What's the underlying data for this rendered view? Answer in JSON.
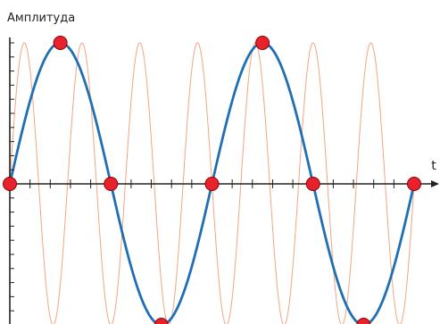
{
  "chart_data": {
    "type": "line",
    "ylabel": "Амплитуда",
    "xlabel": "t",
    "xlim": [
      0,
      2
    ],
    "ylim": [
      -1,
      1
    ],
    "grid": false,
    "series": [
      {
        "function": "sin",
        "cycles": 7,
        "amplitude": 1,
        "color": "#f4a582"
      },
      {
        "function": "sin",
        "cycles": 2,
        "amplitude": 1,
        "color": "#1f6fb4"
      }
    ],
    "sample_points": {
      "x": [
        0,
        0.25,
        0.5,
        0.75,
        1,
        1.25,
        1.5,
        1.75,
        2
      ],
      "y": [
        0,
        1,
        0,
        -1,
        0,
        1,
        0,
        -1,
        0
      ],
      "color": "#e8222c"
    },
    "axis_color": "#222222"
  }
}
